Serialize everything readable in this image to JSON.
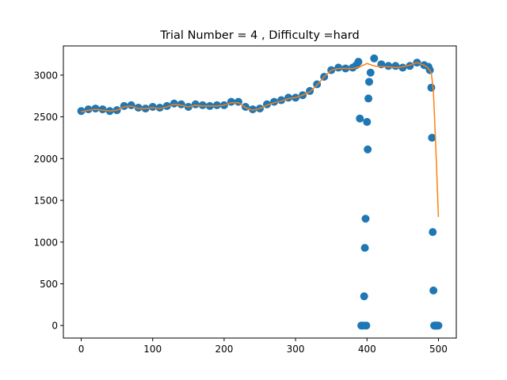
{
  "chart_data": {
    "type": "scatter",
    "title": "Trial Number = 4  , Difficulty =hard",
    "xlabel": "",
    "ylabel": "",
    "xlim": [
      -25,
      525
    ],
    "ylim": [
      -150,
      3350
    ],
    "xticks": [
      0,
      100,
      200,
      300,
      400,
      500
    ],
    "yticks": [
      0,
      500,
      1000,
      1500,
      2000,
      2500,
      3000
    ],
    "grid": false,
    "legend": "none",
    "colors": {
      "scatter": "#1f77b4",
      "line": "#ff7f0e"
    },
    "series": [
      {
        "kind": "scatter",
        "x": [
          0,
          10,
          20,
          30,
          40,
          50,
          60,
          70,
          80,
          90,
          100,
          110,
          120,
          130,
          140,
          150,
          160,
          170,
          180,
          190,
          200,
          210,
          220,
          230,
          240,
          250,
          260,
          270,
          280,
          290,
          300,
          310,
          320,
          330,
          340,
          350,
          360,
          370,
          380,
          385,
          388,
          390,
          392,
          395,
          396,
          397,
          398,
          399,
          400,
          401,
          402,
          403,
          405,
          410,
          420,
          430,
          440,
          450,
          460,
          470,
          480,
          486,
          488,
          490,
          491,
          492,
          493,
          494,
          495,
          496,
          497,
          498,
          500
        ],
        "y": [
          2570,
          2590,
          2600,
          2590,
          2570,
          2580,
          2630,
          2640,
          2610,
          2600,
          2620,
          2610,
          2630,
          2660,
          2650,
          2620,
          2650,
          2640,
          2630,
          2640,
          2640,
          2680,
          2680,
          2620,
          2590,
          2600,
          2650,
          2680,
          2700,
          2730,
          2730,
          2760,
          2810,
          2890,
          2980,
          3060,
          3090,
          3080,
          3090,
          3120,
          3160,
          2480,
          0,
          0,
          350,
          930,
          1280,
          0,
          2440,
          2110,
          2720,
          2920,
          3030,
          3200,
          3130,
          3110,
          3110,
          3090,
          3110,
          3150,
          3120,
          3100,
          3060,
          2850,
          2250,
          1120,
          420,
          0,
          0,
          0,
          0,
          0,
          0
        ]
      },
      {
        "kind": "line",
        "x": [
          0,
          10,
          20,
          30,
          40,
          50,
          60,
          70,
          80,
          90,
          100,
          110,
          120,
          130,
          140,
          150,
          160,
          170,
          180,
          190,
          200,
          210,
          220,
          230,
          240,
          250,
          260,
          270,
          280,
          290,
          300,
          310,
          320,
          330,
          340,
          350,
          360,
          370,
          380,
          390,
          400,
          410,
          420,
          430,
          440,
          450,
          460,
          470,
          480,
          485,
          490,
          493,
          496,
          500
        ],
        "y": [
          2560,
          2580,
          2590,
          2580,
          2570,
          2580,
          2620,
          2630,
          2600,
          2600,
          2610,
          2600,
          2620,
          2650,
          2640,
          2620,
          2640,
          2630,
          2630,
          2630,
          2640,
          2670,
          2670,
          2610,
          2580,
          2600,
          2640,
          2670,
          2690,
          2720,
          2730,
          2760,
          2800,
          2880,
          2980,
          3060,
          3080,
          3080,
          3080,
          3100,
          3140,
          3110,
          3100,
          3100,
          3090,
          3100,
          3120,
          3150,
          3120,
          3090,
          3030,
          2800,
          2200,
          1300
        ]
      }
    ]
  }
}
